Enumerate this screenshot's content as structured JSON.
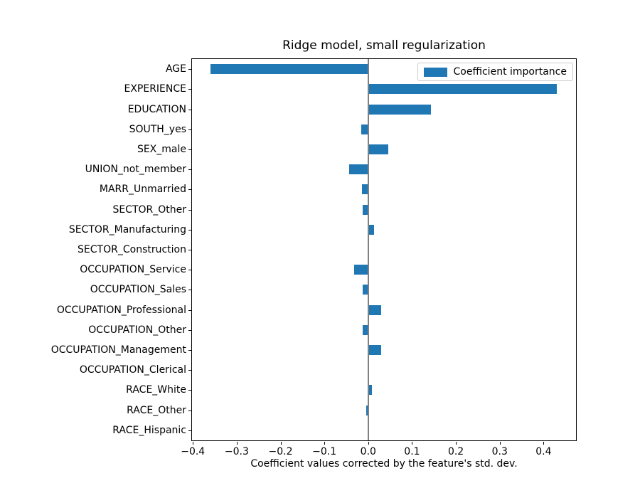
{
  "chart_data": {
    "type": "bar",
    "orientation": "horizontal",
    "title": "Ridge model, small regularization",
    "xlabel": "Coefficient values corrected by the feature's std. dev.",
    "legend": {
      "label": "Coefficient importance",
      "position": "upper right"
    },
    "categories": [
      "AGE",
      "EXPERIENCE",
      "EDUCATION",
      "SOUTH_yes",
      "SEX_male",
      "UNION_not_member",
      "MARR_Unmarried",
      "SECTOR_Other",
      "SECTOR_Manufacturing",
      "SECTOR_Construction",
      "OCCUPATION_Service",
      "OCCUPATION_Sales",
      "OCCUPATION_Professional",
      "OCCUPATION_Other",
      "OCCUPATION_Management",
      "OCCUPATION_Clerical",
      "RACE_White",
      "RACE_Other",
      "RACE_Hispanic"
    ],
    "values": [
      -0.36,
      0.43,
      0.143,
      -0.016,
      0.045,
      -0.044,
      -0.014,
      -0.013,
      0.013,
      -0.001,
      -0.032,
      -0.012,
      0.03,
      -0.012,
      0.029,
      0.001,
      0.009,
      -0.004,
      0.001
    ],
    "xlim": [
      -0.402,
      0.474
    ],
    "xticks": {
      "values": [
        -0.4,
        -0.3,
        -0.2,
        -0.1,
        0.0,
        0.1,
        0.2,
        0.3,
        0.4
      ],
      "labels": [
        "−0.4",
        "−0.3",
        "−0.2",
        "−0.1",
        "0.0",
        "0.1",
        "0.2",
        "0.3",
        "0.4"
      ]
    },
    "grid": false,
    "bar_color": "#1f77b4",
    "zero_line_color": "#808080",
    "axis_color": "#000000",
    "background": "#ffffff"
  }
}
